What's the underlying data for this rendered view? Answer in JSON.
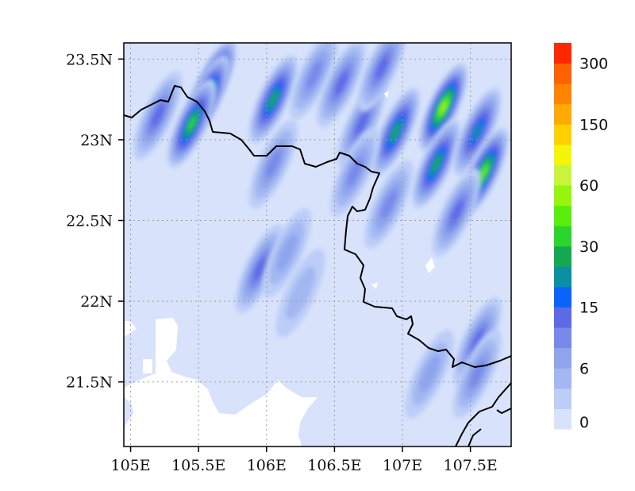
{
  "chart_data": {
    "type": "heatmap",
    "title": "",
    "xlabel": "",
    "ylabel": "",
    "x_range": [
      104.95,
      107.8
    ],
    "y_range": [
      21.1,
      23.6
    ],
    "x_ticks": [
      "105E",
      "105.5E",
      "106E",
      "106.5E",
      "107E",
      "107.5E"
    ],
    "x_tick_values": [
      105.0,
      105.5,
      106.0,
      106.5,
      107.0,
      107.5
    ],
    "y_ticks": [
      "21.5N",
      "22N",
      "22.5N",
      "23N",
      "23.5N"
    ],
    "y_tick_values": [
      21.5,
      22.0,
      22.5,
      23.0,
      23.5
    ],
    "grid": true,
    "background_level_color": "#d8e3fb",
    "colorbar": {
      "position": "right",
      "colors": [
        "#d8e3fb",
        "#bccdf7",
        "#a3b8f2",
        "#8ea5ee",
        "#7989ea",
        "#5d6ae6",
        "#0a64fa",
        "#0a8fa5",
        "#15a852",
        "#29d62d",
        "#5aee0c",
        "#96f50c",
        "#c8f53a",
        "#f5f50a",
        "#ffd000",
        "#ffaa00",
        "#ff8400",
        "#ff6000",
        "#ff2800"
      ],
      "tick_labels": [
        "0",
        "6",
        "15",
        "30",
        "60",
        "150",
        "300"
      ]
    },
    "cells": [
      {
        "lon": 105.2,
        "lat": 23.15,
        "level": 5
      },
      {
        "lon": 105.6,
        "lat": 23.35,
        "level": 11
      },
      {
        "lon": 105.55,
        "lat": 23.25,
        "level": 10
      },
      {
        "lon": 105.45,
        "lat": 23.1,
        "level": 9
      },
      {
        "lon": 106.05,
        "lat": 23.25,
        "level": 8
      },
      {
        "lon": 106.35,
        "lat": 23.4,
        "level": 4
      },
      {
        "lon": 106.05,
        "lat": 22.85,
        "level": 4
      },
      {
        "lon": 106.55,
        "lat": 23.35,
        "level": 5
      },
      {
        "lon": 106.7,
        "lat": 23.1,
        "level": 5
      },
      {
        "lon": 106.85,
        "lat": 23.45,
        "level": 5
      },
      {
        "lon": 106.95,
        "lat": 23.05,
        "level": 8
      },
      {
        "lon": 106.65,
        "lat": 22.8,
        "level": 4
      },
      {
        "lon": 106.9,
        "lat": 22.6,
        "level": 4
      },
      {
        "lon": 107.3,
        "lat": 23.2,
        "level": 11
      },
      {
        "lon": 107.25,
        "lat": 22.85,
        "level": 8
      },
      {
        "lon": 107.55,
        "lat": 23.05,
        "level": 7
      },
      {
        "lon": 107.6,
        "lat": 22.8,
        "level": 10
      },
      {
        "lon": 107.4,
        "lat": 22.55,
        "level": 5
      },
      {
        "lon": 105.95,
        "lat": 22.2,
        "level": 5
      },
      {
        "lon": 106.15,
        "lat": 22.3,
        "level": 3
      },
      {
        "lon": 106.25,
        "lat": 22.05,
        "level": 2
      },
      {
        "lon": 107.55,
        "lat": 21.75,
        "level": 5
      },
      {
        "lon": 107.55,
        "lat": 21.55,
        "level": 4
      },
      {
        "lon": 107.2,
        "lat": 21.55,
        "level": 3
      }
    ]
  }
}
